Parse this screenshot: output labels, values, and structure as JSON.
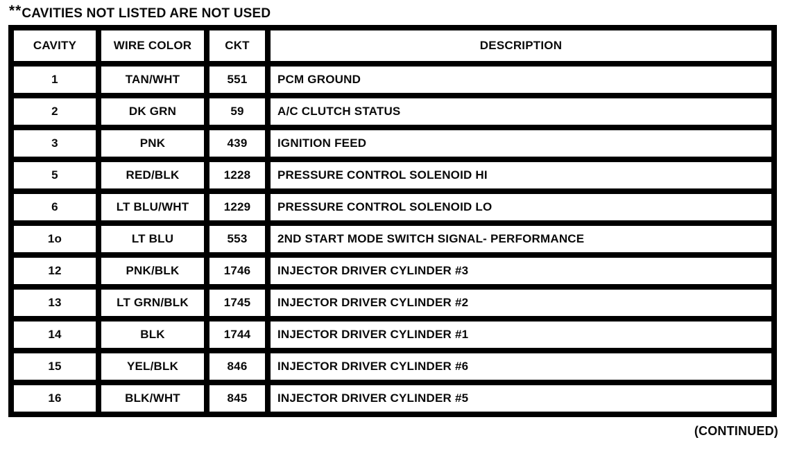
{
  "page": {
    "note_prefix": "**",
    "note_text": "CAVITIES NOT LISTED ARE NOT USED",
    "continued_label": "(CONTINUED)"
  },
  "table": {
    "columns": [
      "CAVITY",
      "WIRE COLOR",
      "CKT",
      "DESCRIPTION"
    ],
    "rows": [
      {
        "cavity": "1",
        "wire_color": "TAN/WHT",
        "ckt": "551",
        "description": "PCM GROUND"
      },
      {
        "cavity": "2",
        "wire_color": "DK GRN",
        "ckt": "59",
        "description": "A/C CLUTCH STATUS"
      },
      {
        "cavity": "3",
        "wire_color": "PNK",
        "ckt": "439",
        "description": "IGNITION FEED"
      },
      {
        "cavity": "5",
        "wire_color": "RED/BLK",
        "ckt": "1228",
        "description": "PRESSURE CONTROL SOLENOID HI"
      },
      {
        "cavity": "6",
        "wire_color": "LT BLU/WHT",
        "ckt": "1229",
        "description": "PRESSURE CONTROL SOLENOID LO"
      },
      {
        "cavity": "1o",
        "wire_color": "LT BLU",
        "ckt": "553",
        "description": "2ND START MODE SWITCH SIGNAL- PERFORMANCE"
      },
      {
        "cavity": "12",
        "wire_color": "PNK/BLK",
        "ckt": "1746",
        "description": "INJECTOR DRIVER CYLINDER #3"
      },
      {
        "cavity": "13",
        "wire_color": "LT GRN/BLK",
        "ckt": "1745",
        "description": "INJECTOR DRIVER CYLINDER #2"
      },
      {
        "cavity": "14",
        "wire_color": "BLK",
        "ckt": "1744",
        "description": "INJECTOR DRIVER CYLINDER #1"
      },
      {
        "cavity": "15",
        "wire_color": "YEL/BLK",
        "ckt": "846",
        "description": "INJECTOR DRIVER CYLINDER #6"
      },
      {
        "cavity": "16",
        "wire_color": "BLK/WHT",
        "ckt": "845",
        "description": "INJECTOR DRIVER CYLINDER #5"
      }
    ]
  }
}
